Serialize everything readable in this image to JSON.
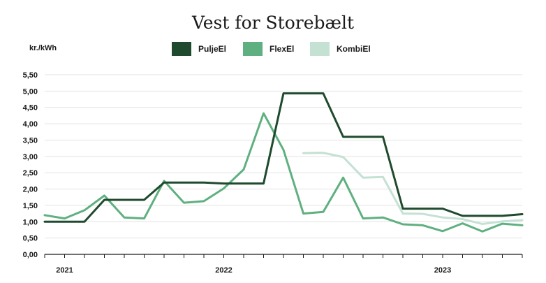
{
  "chart_data": {
    "type": "line",
    "title": "Vest for Storebælt",
    "unit_label": "kr./kWh",
    "ylim": [
      0,
      5.5
    ],
    "yticks": [
      "0,00",
      "0,50",
      "1,00",
      "1,50",
      "2,00",
      "2,50",
      "3,00",
      "3,50",
      "4,00",
      "4,50",
      "5,00",
      "5,50"
    ],
    "x_start_month": "2021-01",
    "x_labels": [
      {
        "label": "2021",
        "month_index": 1
      },
      {
        "label": "2022",
        "month_index": 9
      },
      {
        "label": "2023",
        "month_index": 20
      }
    ],
    "grid": true,
    "legend_position": "top",
    "series": [
      {
        "name": "PuljeEl",
        "color": "#1f4a2d",
        "values": [
          1.0,
          1.0,
          1.0,
          1.67,
          1.67,
          1.67,
          2.2,
          2.2,
          2.2,
          2.17,
          2.17,
          2.17,
          4.93,
          4.93,
          4.93,
          3.6,
          3.6,
          3.6,
          1.4,
          1.4,
          1.4,
          1.18,
          1.18,
          1.18,
          1.23
        ]
      },
      {
        "name": "FlexEl",
        "color": "#5fb080",
        "values": [
          1.2,
          1.1,
          1.35,
          1.8,
          1.13,
          1.1,
          2.25,
          1.58,
          1.63,
          2.02,
          2.6,
          4.32,
          3.2,
          1.25,
          1.3,
          2.35,
          1.1,
          1.13,
          0.92,
          0.89,
          0.71,
          0.95,
          0.7,
          0.94,
          0.89
        ]
      },
      {
        "name": "KombiEl",
        "color": "#c4e1d3",
        "values": [
          null,
          null,
          null,
          null,
          null,
          null,
          null,
          null,
          null,
          null,
          null,
          null,
          null,
          3.1,
          3.11,
          2.98,
          2.35,
          2.37,
          1.25,
          1.24,
          1.13,
          1.08,
          0.93,
          1.01,
          1.05
        ]
      }
    ]
  }
}
